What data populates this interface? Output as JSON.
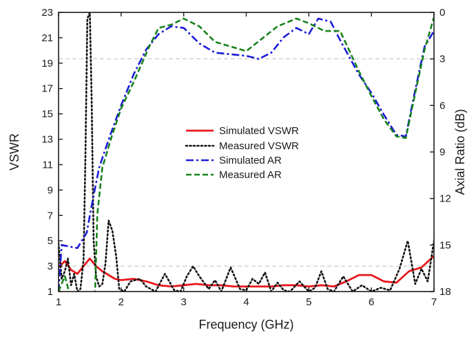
{
  "chart_data": {
    "type": "line",
    "xlabel": "Frequency (GHz)",
    "ylabel": "VSWR",
    "y2label": "Axial Ratio (dB)",
    "xlim": [
      1,
      7
    ],
    "ylim": [
      1,
      23
    ],
    "y2lim": [
      18,
      0
    ],
    "x_ticks": [
      1,
      2,
      3,
      4,
      5,
      6,
      7
    ],
    "y_ticks": [
      1,
      3,
      5,
      7,
      9,
      11,
      13,
      15,
      17,
      19,
      21,
      23
    ],
    "y2_ticks": [
      0,
      3,
      6,
      9,
      12,
      15,
      18
    ],
    "reference_lines": [
      {
        "axis": "y",
        "value": 3,
        "style": "dashed",
        "color": "#c0c0c0"
      },
      {
        "axis": "y2",
        "value": 3,
        "style": "dashed",
        "color": "#c0c0c0"
      }
    ],
    "legend_position": "center",
    "grid": false,
    "series": [
      {
        "name": "Simulated VSWR",
        "axis": "y",
        "color": "#e8161b",
        "dash": "solid",
        "width": 2.8,
        "x": [
          1.0,
          1.1,
          1.2,
          1.3,
          1.4,
          1.5,
          1.6,
          1.7,
          1.8,
          1.9,
          2.0,
          2.2,
          2.4,
          2.6,
          2.8,
          3.0,
          3.2,
          3.4,
          3.6,
          3.8,
          4.0,
          4.2,
          4.4,
          4.6,
          4.8,
          5.0,
          5.2,
          5.4,
          5.6,
          5.8,
          6.0,
          6.2,
          6.4,
          6.6,
          6.8,
          7.0
        ],
        "y": [
          2.9,
          3.4,
          2.7,
          2.4,
          3.0,
          3.6,
          3.0,
          2.6,
          2.3,
          2.0,
          1.9,
          2.0,
          1.8,
          1.5,
          1.4,
          1.5,
          1.6,
          1.5,
          1.5,
          1.4,
          1.4,
          1.4,
          1.4,
          1.5,
          1.5,
          1.4,
          1.5,
          1.4,
          1.8,
          2.3,
          2.3,
          1.8,
          1.7,
          2.6,
          2.9,
          3.8
        ]
      },
      {
        "name": "Measured VSWR",
        "axis": "y",
        "color": "#111111",
        "dash": "dotted",
        "width": 2.6,
        "x": [
          1.0,
          1.05,
          1.1,
          1.15,
          1.2,
          1.25,
          1.3,
          1.35,
          1.4,
          1.43,
          1.46,
          1.5,
          1.53,
          1.56,
          1.6,
          1.65,
          1.7,
          1.75,
          1.8,
          1.86,
          1.92,
          1.97,
          2.05,
          2.15,
          2.3,
          2.4,
          2.55,
          2.7,
          2.85,
          2.95,
          3.05,
          3.15,
          3.25,
          3.4,
          3.5,
          3.6,
          3.75,
          3.9,
          4.0,
          4.1,
          4.2,
          4.3,
          4.4,
          4.5,
          4.6,
          4.7,
          4.85,
          5.0,
          5.1,
          5.2,
          5.3,
          5.4,
          5.55,
          5.7,
          5.85,
          6.0,
          6.15,
          6.3,
          6.45,
          6.58,
          6.7,
          6.8,
          6.9,
          7.0
        ],
        "y": [
          4.8,
          2.0,
          2.6,
          3.6,
          1.5,
          2.4,
          1.0,
          1.2,
          3.5,
          12.0,
          22.5,
          23.0,
          16.0,
          5.0,
          2.2,
          1.4,
          1.6,
          3.2,
          6.6,
          5.8,
          3.8,
          1.2,
          1.0,
          1.8,
          2.0,
          1.4,
          1.0,
          2.4,
          1.1,
          1.0,
          2.2,
          3.0,
          2.2,
          1.2,
          1.9,
          1.0,
          2.9,
          1.2,
          1.1,
          2.0,
          1.6,
          2.5,
          1.0,
          1.7,
          1.1,
          1.0,
          1.8,
          1.0,
          1.3,
          2.6,
          1.2,
          1.0,
          2.2,
          1.0,
          1.5,
          1.0,
          1.3,
          1.1,
          2.8,
          5.0,
          1.6,
          2.8,
          1.8,
          5.0
        ]
      },
      {
        "name": "Simulated AR",
        "axis": "y2",
        "color": "#1a1ad6",
        "dash": "dashdot",
        "width": 2.6,
        "x": [
          1.0,
          1.05,
          1.3,
          1.45,
          1.55,
          1.65,
          1.8,
          2.0,
          2.2,
          2.4,
          2.6,
          2.8,
          3.0,
          3.25,
          3.5,
          3.75,
          4.0,
          4.2,
          4.4,
          4.6,
          4.8,
          5.0,
          5.15,
          5.35,
          5.5,
          5.8,
          6.0,
          6.2,
          6.4,
          6.55,
          6.7,
          6.85,
          7.0
        ],
        "y": [
          18.0,
          15.0,
          15.2,
          14.2,
          12.0,
          10.0,
          8.2,
          6.0,
          4.0,
          2.4,
          1.4,
          0.9,
          1.0,
          2.0,
          2.6,
          2.7,
          2.8,
          3.0,
          2.6,
          1.6,
          1.0,
          1.4,
          0.4,
          0.6,
          1.8,
          4.0,
          5.2,
          6.6,
          7.9,
          8.0,
          5.0,
          2.2,
          1.2
        ]
      },
      {
        "name": "Measured AR",
        "axis": "y2",
        "color": "#16821b",
        "dash": "dashed",
        "width": 2.6,
        "x": [
          1.0,
          1.1,
          1.2,
          1.3,
          1.4,
          1.5,
          1.58,
          1.62,
          1.7,
          1.85,
          2.0,
          2.2,
          2.45,
          2.6,
          2.8,
          3.0,
          3.25,
          3.5,
          3.75,
          4.0,
          4.25,
          4.5,
          4.8,
          5.0,
          5.25,
          5.5,
          5.8,
          6.0,
          6.2,
          6.4,
          6.55,
          6.7,
          6.85,
          7.0
        ],
        "y": [
          18.0,
          17.0,
          18.5,
          19.0,
          19.0,
          18.8,
          18.5,
          13.0,
          10.0,
          8.0,
          6.2,
          4.5,
          2.2,
          1.0,
          0.8,
          0.4,
          0.9,
          1.9,
          2.2,
          2.5,
          1.7,
          0.9,
          0.4,
          0.7,
          1.2,
          1.2,
          3.8,
          5.4,
          6.9,
          8.0,
          8.1,
          5.2,
          2.4,
          0.3
        ]
      }
    ]
  }
}
